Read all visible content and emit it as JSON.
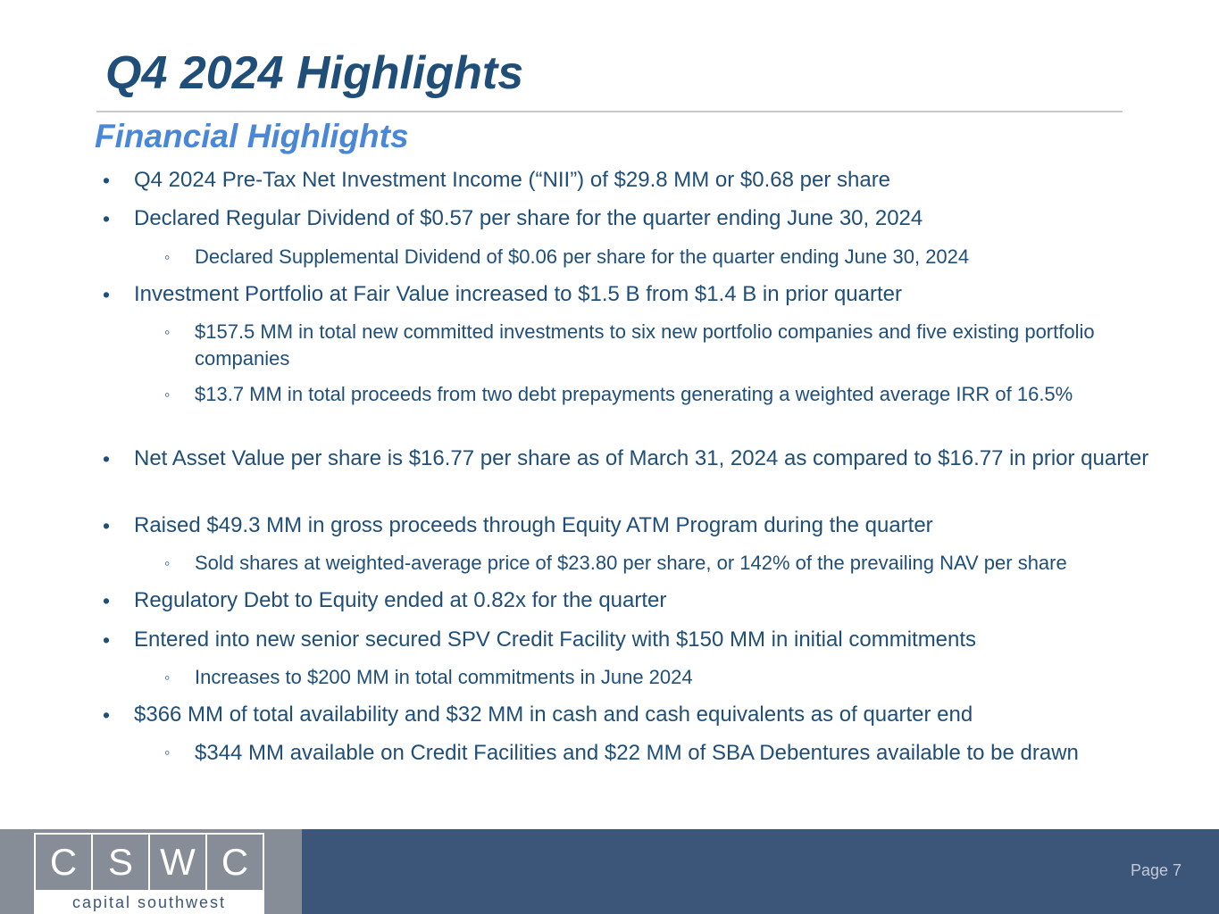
{
  "slide": {
    "title": "Q4 2024 Highlights",
    "subtitle": "Financial Highlights",
    "page": "Page 7"
  },
  "bullets": [
    {
      "level": 1,
      "marker": "•",
      "text": "Q4 2024 Pre-Tax Net Investment Income (“NII”) of $29.8 MM or $0.68 per share"
    },
    {
      "level": 1,
      "marker": "•",
      "text": "Declared Regular Dividend of $0.57 per share for the quarter ending June 30, 2024"
    },
    {
      "level": 2,
      "marker": "◦",
      "text": "Declared Supplemental Dividend of $0.06 per share for the quarter ending June 30, 2024"
    },
    {
      "level": 1,
      "marker": "•",
      "text": "Investment Portfolio at Fair Value increased to $1.5 B from $1.4 B in prior quarter"
    },
    {
      "level": 2,
      "marker": "◦",
      "text": "$157.5 MM in total new committed investments to six new portfolio companies and five existing portfolio companies"
    },
    {
      "level": 2,
      "marker": "◦",
      "text": "$13.7 MM in total proceeds from two debt prepayments generating a weighted average IRR of 16.5%"
    },
    {
      "level": 1,
      "marker": "•",
      "text": "Net Asset Value per share is $16.77 per share as of March 31, 2024 as compared to $16.77 in prior quarter"
    },
    {
      "level": 1,
      "marker": "•",
      "text": "Raised $49.3 MM in gross proceeds through Equity ATM Program during the quarter"
    },
    {
      "level": 2,
      "marker": "◦",
      "text": "Sold shares at weighted-average price of $23.80 per share, or 142% of the prevailing NAV per share"
    },
    {
      "level": 1,
      "marker": "•",
      "text": "Regulatory Debt to Equity ended at 0.82x for the quarter"
    },
    {
      "level": 1,
      "marker": "•",
      "text": "Entered into new senior secured SPV Credit Facility with $150 MM in initial commitments"
    },
    {
      "level": 2,
      "marker": "◦",
      "text": "Increases to $200 MM in total commitments in June 2024"
    },
    {
      "level": 1,
      "marker": "•",
      "text": "$366 MM of total availability and $32 MM in cash and cash equivalents as of quarter end"
    },
    {
      "level": 2,
      "marker": "◦",
      "text": "$344 MM available on Credit Facilities and $22 MM of SBA Debentures available to be drawn"
    }
  ],
  "logo": {
    "letters": [
      "C",
      "S",
      "W",
      "C"
    ],
    "tagline": "capital southwest"
  },
  "colors": {
    "title": "#1f4e79",
    "subtitle": "#4a87d6",
    "footer_gray": "#878d96",
    "footer_blue": "#3c5679"
  }
}
